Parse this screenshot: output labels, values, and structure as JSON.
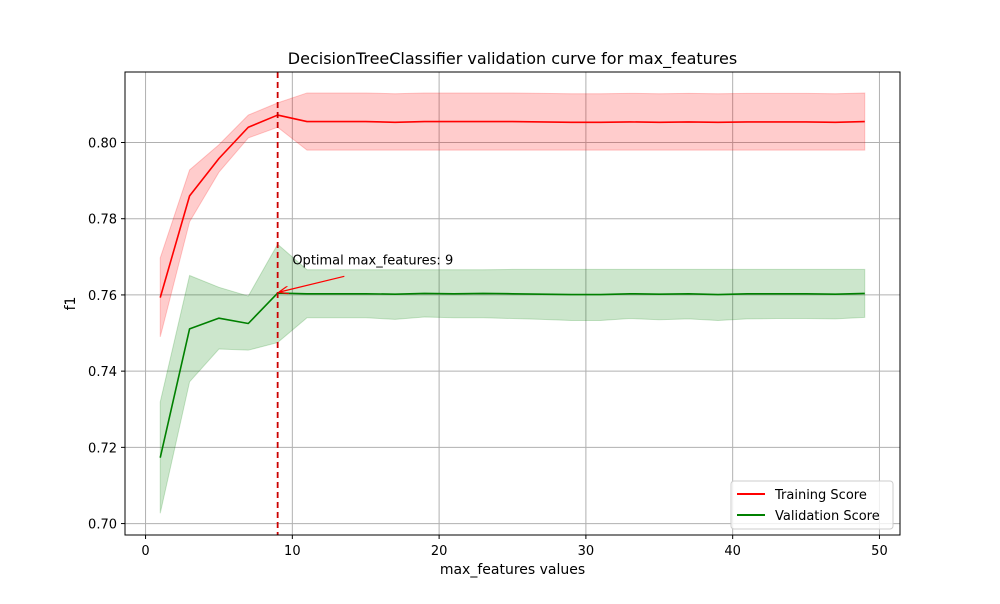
{
  "chart_data": {
    "type": "line",
    "title": "DecisionTreeClassifier validation curve for max_features",
    "xlabel": "max_features values",
    "ylabel": "f1",
    "xlim": [
      -1.4,
      51.4
    ],
    "ylim": [
      0.697,
      0.8185
    ],
    "xticks": [
      0,
      10,
      20,
      30,
      40,
      50
    ],
    "yticks": [
      0.7,
      0.72,
      0.74,
      0.76,
      0.78,
      0.8
    ],
    "xtick_labels": [
      "0",
      "10",
      "20",
      "30",
      "40",
      "50"
    ],
    "ytick_labels": [
      "0.70",
      "0.72",
      "0.74",
      "0.76",
      "0.78",
      "0.80"
    ],
    "grid": true,
    "legend_position": "lower-right",
    "x": [
      1,
      3,
      5,
      7,
      9,
      11,
      13,
      15,
      17,
      19,
      21,
      23,
      25,
      27,
      29,
      31,
      33,
      35,
      37,
      39,
      41,
      43,
      45,
      47,
      49
    ],
    "series": [
      {
        "name": "Training Score",
        "color": "#ff0000",
        "band_color": "#ff0000",
        "values": [
          0.7593,
          0.786,
          0.7958,
          0.804,
          0.8072,
          0.8055,
          0.8055,
          0.8055,
          0.8053,
          0.8055,
          0.8055,
          0.8055,
          0.8055,
          0.8054,
          0.8053,
          0.8053,
          0.8054,
          0.8053,
          0.8054,
          0.8053,
          0.8054,
          0.8054,
          0.8054,
          0.8053,
          0.8055
        ],
        "lower": [
          0.749,
          0.7792,
          0.7922,
          0.8012,
          0.804,
          0.798,
          0.798,
          0.798,
          0.798,
          0.798,
          0.798,
          0.798,
          0.798,
          0.798,
          0.798,
          0.798,
          0.798,
          0.798,
          0.798,
          0.798,
          0.798,
          0.798,
          0.798,
          0.798,
          0.798
        ],
        "upper": [
          0.7697,
          0.7928,
          0.7994,
          0.8072,
          0.8104,
          0.813,
          0.813,
          0.813,
          0.8128,
          0.813,
          0.813,
          0.813,
          0.813,
          0.8129,
          0.8128,
          0.8128,
          0.8129,
          0.8128,
          0.8129,
          0.8128,
          0.8129,
          0.8129,
          0.8129,
          0.8128,
          0.813
        ]
      },
      {
        "name": "Validation Score",
        "color": "#008000",
        "band_color": "#008000",
        "values": [
          0.7173,
          0.7511,
          0.7539,
          0.7525,
          0.7605,
          0.7603,
          0.7603,
          0.7603,
          0.7602,
          0.7604,
          0.7603,
          0.7604,
          0.7603,
          0.7602,
          0.7601,
          0.7601,
          0.7603,
          0.7602,
          0.7603,
          0.7601,
          0.7603,
          0.7603,
          0.7603,
          0.7602,
          0.7604
        ],
        "lower": [
          0.7027,
          0.7372,
          0.7458,
          0.7455,
          0.7475,
          0.754,
          0.754,
          0.754,
          0.7536,
          0.7542,
          0.754,
          0.754,
          0.7538,
          0.7536,
          0.7533,
          0.7533,
          0.7538,
          0.7535,
          0.7537,
          0.7533,
          0.7537,
          0.7538,
          0.7538,
          0.7537,
          0.7541
        ],
        "upper": [
          0.7319,
          0.7651,
          0.762,
          0.7597,
          0.7733,
          0.7666,
          0.7666,
          0.7666,
          0.7666,
          0.7666,
          0.7666,
          0.7666,
          0.7667,
          0.7667,
          0.7667,
          0.7667,
          0.7667,
          0.7667,
          0.7667,
          0.7667,
          0.7667,
          0.7667,
          0.7667,
          0.7667,
          0.7667
        ]
      }
    ],
    "optimal_line": {
      "x": 9,
      "color": "#cc0000"
    },
    "annotation": {
      "text": "Optimal max_features: 9",
      "arrow_to": [
        9,
        0.7605
      ],
      "text_at": [
        10,
        0.7675
      ]
    }
  }
}
